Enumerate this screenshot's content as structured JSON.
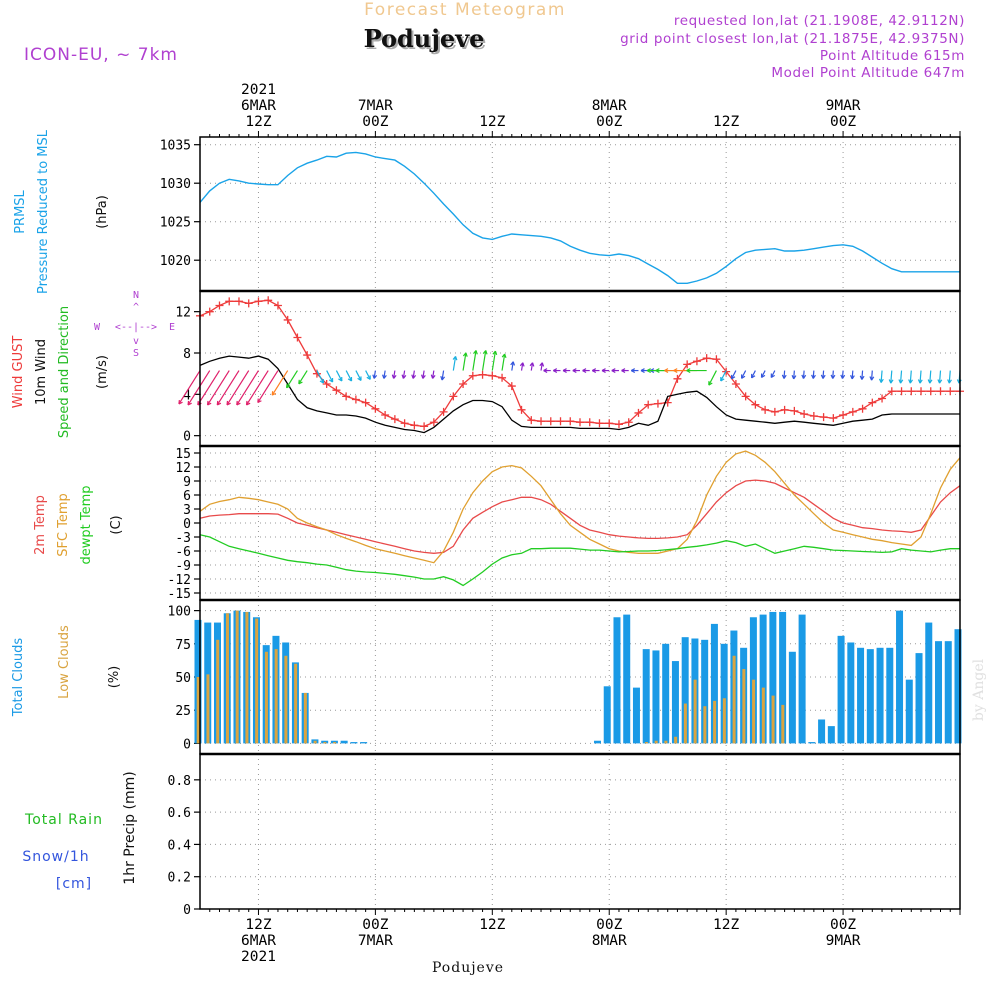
{
  "header": {
    "product": "Forecast Meteogram",
    "location": "Podujeve",
    "model": "ICON-EU, ~ 7km",
    "requested": "requested lon,lat (21.1908E, 42.9112N)",
    "grid_point": "grid point closest lon,lat (21.1875E, 42.9375N)",
    "point_altitude": "Point Altitude 615m",
    "model_altitude": "Model Point Altitude 647m"
  },
  "footer": {
    "location": "Podujeve",
    "credit": "by Angel"
  },
  "colors": {
    "pressure": "#1aa3e8",
    "gust": "#ee3b3b",
    "wind": "#000000",
    "direction": "#22bb22",
    "temp2m": "#e84a4a",
    "sfc": "#e0a030",
    "dewpt": "#22cc22",
    "total_clouds": "#1a9ae6",
    "low_clouds": "#d9a441",
    "compass": "#b040d0",
    "header_product": "#f0c890",
    "header_info": "#b040d0"
  },
  "time_axis": {
    "top_labels": [
      {
        "h": 12,
        "lines": [
          "2021",
          "6MAR",
          "12Z"
        ]
      },
      {
        "h": 24,
        "lines": [
          "7MAR",
          "00Z"
        ]
      },
      {
        "h": 36,
        "lines": [
          "12Z"
        ]
      },
      {
        "h": 48,
        "lines": [
          "8MAR",
          "00Z"
        ]
      },
      {
        "h": 60,
        "lines": [
          "12Z"
        ]
      },
      {
        "h": 72,
        "lines": [
          "9MAR",
          "00Z"
        ]
      }
    ],
    "bottom_labels": [
      {
        "h": 12,
        "lines": [
          "12Z",
          "6MAR",
          "2021"
        ]
      },
      {
        "h": 24,
        "lines": [
          "00Z",
          "7MAR"
        ]
      },
      {
        "h": 36,
        "lines": [
          "12Z"
        ]
      },
      {
        "h": 48,
        "lines": [
          "00Z",
          "8MAR"
        ]
      },
      {
        "h": 60,
        "lines": [
          "12Z"
        ]
      },
      {
        "h": 72,
        "lines": [
          "00Z",
          "9MAR"
        ]
      }
    ]
  },
  "chart_data": [
    {
      "type": "line",
      "panel": "pressure",
      "ylabel": [
        "PRMSL",
        "Pressure Reduced to MSL"
      ],
      "unit": "(hPa)",
      "yticks": [
        1020,
        1025,
        1030,
        1035
      ],
      "ylim": [
        1016,
        1036
      ],
      "x": [
        6,
        7,
        8,
        9,
        10,
        11,
        12,
        13,
        14,
        15,
        16,
        17,
        18,
        19,
        20,
        21,
        22,
        23,
        24,
        25,
        26,
        27,
        28,
        29,
        30,
        31,
        32,
        33,
        34,
        35,
        36,
        37,
        38,
        39,
        40,
        41,
        42,
        43,
        44,
        45,
        46,
        47,
        48,
        49,
        50,
        51,
        52,
        53,
        54,
        55,
        56,
        57,
        58,
        59,
        60,
        61,
        62,
        63,
        64,
        65,
        66,
        67,
        68,
        69,
        70,
        71,
        72,
        73,
        74,
        75,
        76,
        77,
        78,
        79,
        80,
        81,
        82,
        83,
        84
      ],
      "series": [
        {
          "name": "PRMSL",
          "values": [
            1027.5,
            1029.0,
            1030.0,
            1030.5,
            1030.3,
            1030.0,
            1029.9,
            1029.8,
            1029.8,
            1031.0,
            1032.0,
            1032.6,
            1033.0,
            1033.5,
            1033.4,
            1033.9,
            1034.0,
            1033.8,
            1033.4,
            1033.2,
            1033.0,
            1032.2,
            1031.2,
            1030.0,
            1028.7,
            1027.3,
            1026.0,
            1024.6,
            1023.5,
            1022.9,
            1022.7,
            1023.1,
            1023.4,
            1023.3,
            1023.2,
            1023.1,
            1022.9,
            1022.5,
            1021.8,
            1021.3,
            1020.9,
            1020.7,
            1020.6,
            1020.8,
            1020.6,
            1020.2,
            1019.5,
            1018.8,
            1018.0,
            1017.0,
            1017.0,
            1017.3,
            1017.7,
            1018.3,
            1019.2,
            1020.2,
            1021.0,
            1021.3,
            1021.4,
            1021.5,
            1021.2,
            1021.2,
            1021.3,
            1021.5,
            1021.7,
            1021.9,
            1022.0,
            1021.8,
            1021.2,
            1020.4,
            1019.6,
            1018.9,
            1018.5,
            1018.5,
            1018.5,
            1018.5,
            1018.5,
            1018.5,
            1018.5
          ]
        }
      ]
    },
    {
      "type": "line",
      "panel": "wind",
      "ylabel": [
        "Wind GUST",
        "10m Wind",
        "Speed and Direction"
      ],
      "unit": "(m/s)",
      "yticks": [
        0,
        4,
        8,
        12
      ],
      "ylim": [
        -1,
        14
      ],
      "compass": {
        "n": "N",
        "s": "S",
        "w": "W",
        "e": "E",
        "center": "<--|-->",
        "up_arrow": "^",
        "down_arrow": "v"
      },
      "x": [
        6,
        7,
        8,
        9,
        10,
        11,
        12,
        13,
        14,
        15,
        16,
        17,
        18,
        19,
        20,
        21,
        22,
        23,
        24,
        25,
        26,
        27,
        28,
        29,
        30,
        31,
        32,
        33,
        34,
        35,
        36,
        37,
        38,
        39,
        40,
        41,
        42,
        43,
        44,
        45,
        46,
        47,
        48,
        49,
        50,
        51,
        52,
        53,
        54,
        55,
        56,
        57,
        58,
        59,
        60,
        61,
        62,
        63,
        64,
        65,
        66,
        67,
        68,
        69,
        70,
        71,
        72,
        73,
        74,
        75,
        76,
        77,
        78,
        79,
        80,
        81,
        82,
        83,
        84
      ],
      "series": [
        {
          "name": "Wind GUST",
          "values": [
            11.6,
            12.0,
            12.6,
            13.0,
            13.0,
            12.8,
            13.0,
            13.1,
            12.6,
            11.2,
            9.5,
            7.8,
            6.0,
            5.0,
            4.4,
            3.8,
            3.5,
            3.2,
            2.6,
            2.0,
            1.6,
            1.2,
            1.0,
            0.9,
            1.3,
            2.3,
            3.8,
            5.0,
            5.8,
            5.9,
            5.8,
            5.6,
            4.8,
            2.5,
            1.5,
            1.4,
            1.4,
            1.4,
            1.4,
            1.3,
            1.3,
            1.2,
            1.2,
            1.1,
            1.3,
            2.2,
            3.0,
            3.1,
            3.2,
            5.5,
            6.9,
            7.2,
            7.5,
            7.4,
            6.2,
            5.0,
            3.8,
            3.0,
            2.5,
            2.3,
            2.5,
            2.4,
            2.1,
            1.9,
            1.8,
            1.7,
            2.0,
            2.3,
            2.6,
            3.2,
            3.6,
            4.3,
            4.3,
            4.3,
            4.3,
            4.3,
            4.3,
            4.3,
            4.3
          ]
        },
        {
          "name": "10m Wind",
          "values": [
            6.8,
            7.2,
            7.5,
            7.7,
            7.6,
            7.5,
            7.7,
            7.4,
            6.5,
            5.0,
            3.5,
            2.7,
            2.4,
            2.2,
            2.0,
            2.0,
            1.9,
            1.7,
            1.3,
            1.0,
            0.8,
            0.6,
            0.5,
            0.3,
            0.8,
            1.6,
            2.4,
            3.0,
            3.4,
            3.4,
            3.3,
            2.8,
            1.5,
            0.9,
            0.8,
            0.8,
            0.8,
            0.8,
            0.8,
            0.7,
            0.7,
            0.7,
            0.7,
            0.6,
            0.8,
            1.2,
            1.0,
            1.4,
            3.8,
            4.0,
            4.2,
            4.3,
            3.7,
            2.8,
            2.0,
            1.6,
            1.5,
            1.4,
            1.3,
            1.2,
            1.3,
            1.4,
            1.3,
            1.2,
            1.1,
            1.0,
            1.2,
            1.4,
            1.5,
            1.6,
            2.0,
            2.1,
            2.1,
            2.1,
            2.1,
            2.1,
            2.1,
            2.1,
            2.1
          ]
        }
      ]
    },
    {
      "type": "line",
      "panel": "temperature",
      "ylabel": [
        "2m Temp",
        "SFC Temp",
        "dewpt Temp"
      ],
      "unit": "(C)",
      "yticks": [
        -15,
        -12,
        -9,
        -6,
        -3,
        0,
        3,
        6,
        9,
        12,
        15
      ],
      "ylim": [
        -16.5,
        16.5
      ],
      "x": [
        6,
        7,
        8,
        9,
        10,
        11,
        12,
        13,
        14,
        15,
        16,
        17,
        18,
        19,
        20,
        21,
        22,
        23,
        24,
        25,
        26,
        27,
        28,
        29,
        30,
        31,
        32,
        33,
        34,
        35,
        36,
        37,
        38,
        39,
        40,
        41,
        42,
        43,
        44,
        45,
        46,
        47,
        48,
        49,
        50,
        51,
        52,
        53,
        54,
        55,
        56,
        57,
        58,
        59,
        60,
        61,
        62,
        63,
        64,
        65,
        66,
        67,
        68,
        69,
        70,
        71,
        72,
        73,
        74,
        75,
        76,
        77,
        78,
        79,
        80,
        81,
        82,
        83,
        84
      ],
      "series": [
        {
          "name": "2m Temp",
          "values": [
            1.0,
            1.5,
            1.7,
            1.8,
            2.0,
            2.0,
            2.0,
            2.0,
            1.9,
            1.0,
            0.0,
            -0.5,
            -1.0,
            -1.5,
            -2.0,
            -2.5,
            -3.0,
            -3.5,
            -4.0,
            -4.5,
            -5.0,
            -5.5,
            -6.0,
            -6.3,
            -6.5,
            -6.3,
            -5.0,
            -1.5,
            1.0,
            2.3,
            3.5,
            4.5,
            5.0,
            5.5,
            5.5,
            5.0,
            4.0,
            2.5,
            1.0,
            -0.5,
            -1.5,
            -2.0,
            -2.5,
            -2.8,
            -3.0,
            -3.2,
            -3.3,
            -3.3,
            -3.2,
            -3.0,
            -2.5,
            -0.5,
            2.0,
            4.5,
            6.5,
            8.0,
            9.0,
            9.2,
            9.0,
            8.5,
            7.5,
            6.5,
            5.5,
            4.0,
            2.5,
            1.0,
            0.0,
            -0.5,
            -1.0,
            -1.2,
            -1.5,
            -1.7,
            -1.8,
            -2.0,
            -1.5,
            1.5,
            4.5,
            6.5,
            8.0
          ]
        },
        {
          "name": "SFC Temp",
          "values": [
            2.5,
            4.0,
            4.6,
            5.0,
            5.5,
            5.3,
            5.0,
            4.5,
            4.0,
            3.0,
            1.0,
            0.0,
            -0.8,
            -1.5,
            -2.5,
            -3.3,
            -4.0,
            -4.8,
            -5.5,
            -6.0,
            -6.5,
            -7.0,
            -7.5,
            -8.0,
            -8.5,
            -6.0,
            -2.0,
            3.0,
            6.5,
            9.0,
            11.0,
            12.0,
            12.3,
            11.8,
            10.0,
            8.0,
            5.0,
            2.0,
            -0.5,
            -2.0,
            -3.5,
            -4.5,
            -5.5,
            -6.0,
            -6.3,
            -6.5,
            -6.5,
            -6.5,
            -6.0,
            -5.5,
            -3.5,
            0.5,
            6.0,
            10.0,
            13.0,
            14.8,
            15.4,
            14.5,
            13.0,
            11.0,
            8.5,
            6.0,
            4.0,
            2.0,
            0.0,
            -1.5,
            -2.0,
            -2.5,
            -3.0,
            -3.5,
            -3.8,
            -4.2,
            -4.5,
            -4.8,
            -3.0,
            2.0,
            7.5,
            11.5,
            14.0
          ]
        },
        {
          "name": "dewpt Temp",
          "values": [
            -2.5,
            -3.0,
            -4.0,
            -5.0,
            -5.5,
            -6.0,
            -6.5,
            -7.0,
            -7.5,
            -8.0,
            -8.3,
            -8.5,
            -8.8,
            -9.0,
            -9.5,
            -10.0,
            -10.3,
            -10.5,
            -10.6,
            -10.8,
            -11.0,
            -11.3,
            -11.6,
            -12.0,
            -12.0,
            -11.5,
            -12.2,
            -13.4,
            -12.0,
            -10.5,
            -8.8,
            -7.5,
            -6.8,
            -6.5,
            -5.5,
            -5.5,
            -5.4,
            -5.4,
            -5.4,
            -5.6,
            -5.8,
            -5.8,
            -6.0,
            -6.2,
            -6.1,
            -6.0,
            -6.0,
            -5.9,
            -5.7,
            -5.5,
            -5.2,
            -5.0,
            -4.7,
            -4.3,
            -3.8,
            -4.2,
            -5.0,
            -4.5,
            -5.5,
            -6.5,
            -6.0,
            -5.5,
            -5.0,
            -5.2,
            -5.5,
            -5.8,
            -5.9,
            -6.0,
            -6.1,
            -6.2,
            -6.3,
            -6.2,
            -5.5,
            -5.8,
            -6.0,
            -6.2,
            -5.8,
            -5.5,
            -5.5
          ]
        }
      ]
    },
    {
      "type": "bar",
      "panel": "clouds",
      "ylabel": [
        "Total Clouds",
        "Low Clouds"
      ],
      "unit": "(%)",
      "yticks": [
        0,
        25,
        50,
        75,
        100
      ],
      "ylim": [
        -8,
        108
      ],
      "x": [
        6,
        7,
        8,
        9,
        10,
        11,
        12,
        13,
        14,
        15,
        16,
        17,
        18,
        19,
        20,
        21,
        22,
        23,
        24,
        25,
        26,
        27,
        28,
        29,
        30,
        31,
        32,
        33,
        34,
        35,
        36,
        37,
        38,
        39,
        40,
        41,
        42,
        43,
        44,
        45,
        46,
        47,
        48,
        49,
        50,
        51,
        52,
        53,
        54,
        55,
        56,
        57,
        58,
        59,
        60,
        61,
        62,
        63,
        64,
        65,
        66,
        67,
        68,
        69,
        70,
        71,
        72,
        73,
        74,
        75,
        76,
        77,
        78,
        79,
        80,
        81,
        82,
        83,
        84
      ],
      "series": [
        {
          "name": "Total Clouds",
          "values": [
            93,
            91,
            91,
            98,
            100,
            99,
            95,
            74,
            81,
            76,
            61,
            38,
            3,
            2,
            2,
            2,
            1,
            1,
            0,
            0,
            0,
            0,
            0,
            0,
            0,
            0,
            0,
            0,
            0,
            0,
            0,
            0,
            0,
            0,
            0,
            0,
            0,
            0,
            0,
            0,
            0,
            2,
            43,
            95,
            97,
            42,
            71,
            70,
            75,
            62,
            80,
            79,
            78,
            90,
            75,
            85,
            72,
            95,
            97,
            99,
            99,
            69,
            97,
            1,
            18,
            13,
            81,
            76,
            72,
            71,
            72,
            72,
            100,
            48,
            68,
            91,
            77,
            77,
            86
          ]
        },
        {
          "name": "Low Clouds",
          "values": [
            50,
            52,
            78,
            98,
            100,
            99,
            94,
            69,
            71,
            66,
            60,
            38,
            2,
            1,
            1,
            0,
            0,
            0,
            0,
            0,
            0,
            0,
            0,
            0,
            0,
            0,
            0,
            0,
            0,
            0,
            0,
            0,
            0,
            0,
            0,
            0,
            0,
            0,
            0,
            0,
            0,
            0,
            0,
            0,
            0,
            0,
            1,
            2,
            2,
            5,
            30,
            48,
            28,
            32,
            34,
            66,
            56,
            48,
            42,
            36,
            29,
            0,
            0,
            0,
            0,
            0,
            0,
            0,
            0,
            0,
            0,
            0,
            0,
            0,
            0,
            0,
            0,
            0,
            0
          ]
        }
      ]
    },
    {
      "type": "line",
      "panel": "precip",
      "ylabel": [
        "Total Rain",
        "Snow/1h",
        "[cm]"
      ],
      "unit": "1hr Precip (mm)",
      "yticks": [
        0,
        0.2,
        0.4,
        0.6,
        0.8
      ],
      "ylim": [
        0,
        0.96
      ],
      "x": [
        6,
        84
      ],
      "series": [
        {
          "name": "Total Rain",
          "values": [
            0,
            0
          ]
        }
      ]
    }
  ]
}
